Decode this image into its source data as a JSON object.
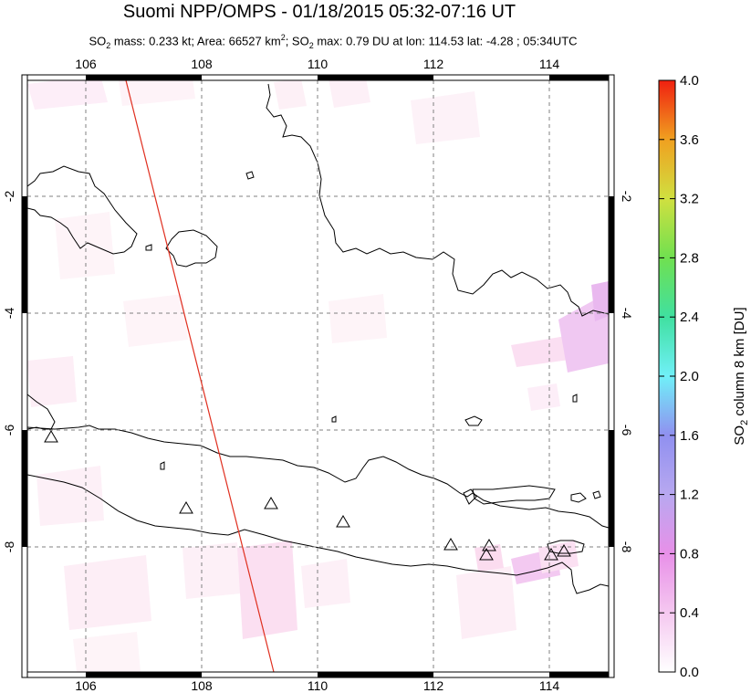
{
  "title": "Suomi NPP/OMPS - 01/18/2015 05:32-07:16 UT",
  "subtitle": {
    "so2_mass_prefix": "SO",
    "so2_mass_sub": "2",
    "so2_mass_text": " mass: 0.233 kt; Area: 66527 km",
    "area_sup": "2",
    "so2_max_prefix": "; SO",
    "so2_max_sub": "2",
    "so2_max_text": " max: 0.79 DU at lon: 114.53 lat: -4.28 ; 05:34UTC"
  },
  "map": {
    "lon_ticks": [
      "106",
      "108",
      "110",
      "112",
      "114"
    ],
    "lat_ticks": [
      "-2",
      "-4",
      "-6",
      "-8"
    ],
    "lon_range": [
      105,
      115
    ],
    "lat_range": [
      -10.1,
      0.1
    ],
    "orbit_track": "red line",
    "volcano_marker": "triangle"
  },
  "colorbar": {
    "label": "SO2 column 8 km [DU]",
    "label_main": "SO",
    "label_sub": "2",
    "label_rest": " column 8 km [DU]",
    "ticks": [
      "0.0",
      "0.4",
      "0.8",
      "1.2",
      "1.6",
      "2.0",
      "2.4",
      "2.8",
      "3.2",
      "3.6",
      "4.0"
    ],
    "range": [
      0.0,
      4.0
    ]
  }
}
